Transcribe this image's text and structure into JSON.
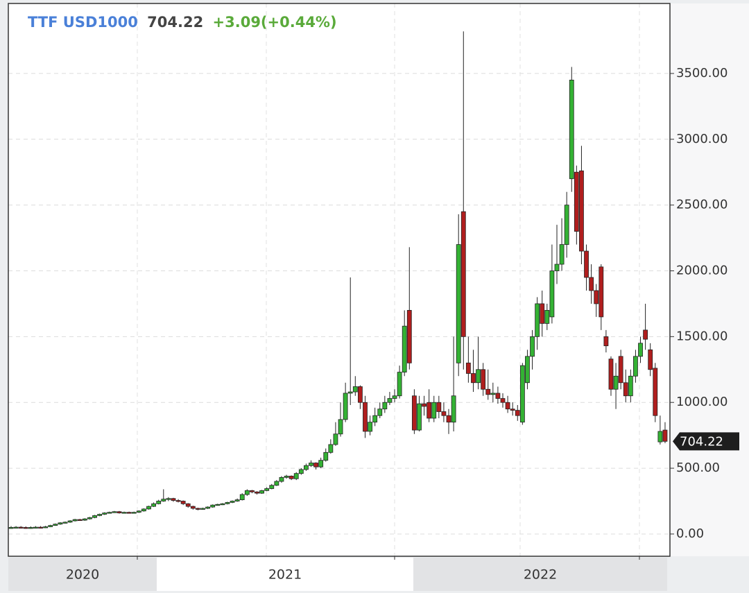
{
  "chart_data": {
    "type": "candlestick",
    "symbol": "TTF USD1000",
    "change": "+3.09(+0.44%)",
    "x_labels": [
      "2020",
      "2021",
      "2022"
    ],
    "ylim": [
      -169,
      4032
    ],
    "yticks": [
      {
        "value": 0,
        "label": "0.00"
      },
      {
        "value": 500,
        "label": "500.00"
      },
      {
        "value": 1000,
        "label": "1000.00"
      },
      {
        "value": 1500,
        "label": "1500.00"
      },
      {
        "value": 2000,
        "label": "2000.00"
      },
      {
        "value": 2500,
        "label": "2500.00"
      },
      {
        "value": 3000,
        "label": "3000.00"
      },
      {
        "value": 3500,
        "label": "3500.00"
      }
    ],
    "grid": true,
    "up_color": "#34b234",
    "down_color": "#b01e1e",
    "open": [
      50,
      50,
      52,
      50,
      48,
      50,
      52,
      50,
      55,
      65,
      75,
      85,
      90,
      100,
      110,
      105,
      115,
      125,
      140,
      150,
      160,
      165,
      170,
      160,
      165,
      160,
      165,
      175,
      190,
      210,
      230,
      250,
      265,
      270,
      255,
      250,
      230,
      210,
      195,
      190,
      195,
      205,
      220,
      225,
      230,
      240,
      250,
      260,
      300,
      330,
      320,
      310,
      330,
      345,
      370,
      400,
      430,
      440,
      420,
      460,
      490,
      520,
      540,
      510,
      560,
      620,
      680,
      760,
      870,
      1070,
      1080,
      1120,
      1000,
      780,
      850,
      900,
      950,
      1000,
      1030,
      1050,
      1230,
      1700,
      1050,
      790,
      990,
      1000,
      880,
      1000,
      930,
      900,
      850,
      1300,
      2450,
      1300,
      1220,
      1150,
      1250,
      1100,
      1060,
      1070,
      1030,
      1000,
      950,
      940,
      850,
      1150,
      1350,
      1500,
      1750,
      1600,
      1650,
      2000,
      2050,
      2200,
      2700,
      2750,
      2760,
      2150,
      1950,
      1850,
      2030,
      1500,
      1330,
      1100,
      1350,
      1150,
      1050,
      1200,
      1350,
      1550,
      1400,
      1260,
      700,
      790
    ],
    "high": [
      60,
      60,
      60,
      58,
      58,
      60,
      60,
      62,
      70,
      80,
      90,
      95,
      105,
      115,
      115,
      120,
      130,
      145,
      155,
      165,
      170,
      175,
      175,
      170,
      170,
      170,
      180,
      195,
      215,
      240,
      260,
      340,
      280,
      275,
      265,
      255,
      235,
      215,
      200,
      200,
      210,
      225,
      230,
      235,
      245,
      255,
      270,
      310,
      340,
      335,
      325,
      335,
      355,
      380,
      410,
      440,
      450,
      445,
      470,
      500,
      535,
      560,
      545,
      580,
      650,
      720,
      850,
      1000,
      1150,
      1950,
      1200,
      1130,
      1050,
      900,
      960,
      1000,
      1050,
      1080,
      1100,
      1280,
      1700,
      2180,
      1100,
      1050,
      1050,
      1100,
      1050,
      1050,
      1000,
      950,
      1500,
      2430,
      3820,
      1500,
      1400,
      1500,
      1300,
      1250,
      1150,
      1120,
      1070,
      1050,
      1000,
      980,
      1300,
      1400,
      1550,
      1800,
      1850,
      1750,
      2200,
      2350,
      2400,
      2600,
      3550,
      2800,
      2950,
      2200,
      2050,
      1900,
      2050,
      1550,
      1350,
      1300,
      1400,
      1250,
      1250,
      1400,
      1500,
      1750,
      1450,
      1300,
      900,
      850
    ],
    "low": [
      40,
      42,
      42,
      40,
      40,
      42,
      42,
      45,
      52,
      62,
      70,
      80,
      85,
      95,
      100,
      100,
      110,
      120,
      135,
      145,
      155,
      160,
      155,
      155,
      155,
      155,
      160,
      170,
      185,
      205,
      225,
      245,
      250,
      245,
      240,
      220,
      200,
      185,
      180,
      185,
      190,
      200,
      215,
      220,
      225,
      235,
      245,
      255,
      290,
      310,
      300,
      305,
      325,
      340,
      365,
      390,
      420,
      410,
      410,
      450,
      480,
      510,
      490,
      500,
      550,
      610,
      670,
      740,
      850,
      980,
      1050,
      950,
      730,
      750,
      820,
      880,
      920,
      980,
      1000,
      1030,
      1200,
      1250,
      760,
      780,
      900,
      850,
      850,
      880,
      850,
      760,
      780,
      1200,
      1250,
      1150,
      1080,
      1100,
      1050,
      1020,
      1000,
      990,
      960,
      920,
      900,
      860,
      830,
      1100,
      1250,
      1400,
      1500,
      1550,
      1600,
      1900,
      2000,
      2100,
      2600,
      2200,
      2050,
      1850,
      1750,
      1650,
      1550,
      1380,
      1050,
      950,
      1100,
      1000,
      1000,
      1150,
      1300,
      1400,
      1200,
      850,
      680,
      690
    ],
    "close": [
      50,
      52,
      50,
      48,
      50,
      52,
      50,
      55,
      65,
      75,
      85,
      90,
      100,
      110,
      105,
      115,
      125,
      140,
      150,
      160,
      165,
      170,
      160,
      165,
      160,
      165,
      175,
      190,
      210,
      230,
      250,
      265,
      270,
      255,
      250,
      230,
      210,
      195,
      190,
      195,
      205,
      220,
      225,
      230,
      240,
      250,
      260,
      300,
      330,
      320,
      310,
      330,
      345,
      370,
      400,
      430,
      440,
      420,
      460,
      490,
      520,
      540,
      510,
      560,
      620,
      680,
      760,
      870,
      1070,
      1080,
      1120,
      1000,
      780,
      850,
      900,
      950,
      1000,
      1030,
      1050,
      1230,
      1580,
      1300,
      790,
      990,
      970,
      880,
      1000,
      930,
      900,
      850,
      1050,
      2200,
      1500,
      1220,
      1150,
      1250,
      1100,
      1060,
      1070,
      1030,
      1000,
      950,
      940,
      900,
      1280,
      1350,
      1500,
      1750,
      1600,
      1700,
      2000,
      2050,
      2200,
      2500,
      3450,
      2300,
      2150,
      1950,
      1850,
      1750,
      1650,
      1430,
      1100,
      1200,
      1150,
      1050,
      1200,
      1350,
      1450,
      1480,
      1250,
      900,
      780,
      704.22
    ]
  }
}
